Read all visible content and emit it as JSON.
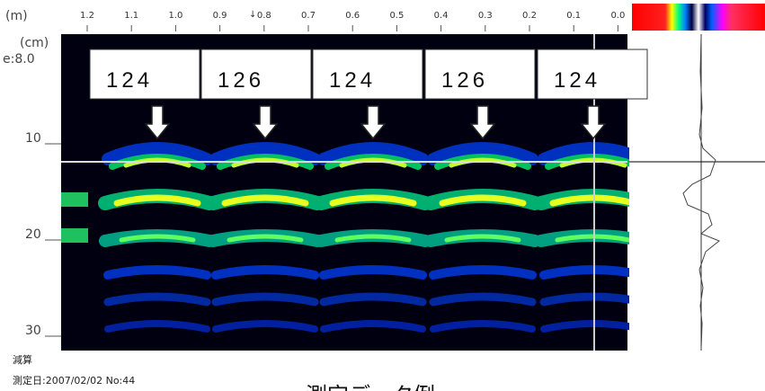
{
  "top_axis": {
    "unit": "(m)",
    "ticks": [
      "1.2",
      "1.1",
      "1.0",
      "0.9",
      "0.8",
      "0.7",
      "0.6",
      "0.5",
      "0.4",
      "0.3",
      "0.2",
      "0.1",
      "0.0"
    ]
  },
  "left_axis": {
    "unit": "(cm)",
    "permittivity": "e:8.0",
    "ticks": [
      "10",
      "20",
      "30"
    ]
  },
  "rebars": [
    "124",
    "126",
    "124",
    "126",
    "124"
  ],
  "footer": {
    "mode": "減算",
    "meta": "測定日:2007/02/02 No:44",
    "caption": "測定データ例"
  }
}
